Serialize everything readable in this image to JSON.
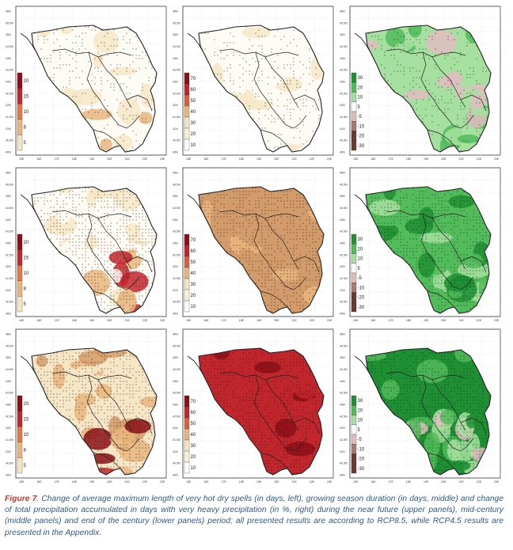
{
  "caption": {
    "figure_label": "Figure 7",
    "text": ". Change of average maximum length of very hot dry spells (in days, left), growing season duration (in days, middle) and change of total precipitation accumulated in days with very heavy precipitation (in %, right) during the near future (upper panels), mid-century (middle panels) and end of the century (lower panels) period; all presented results are according to RCP8.5, while RCP4.5 results are presented in the Appendix."
  },
  "colors": {
    "white": "#fdfbf4",
    "light_tan": "#f6e6c6",
    "tan": "#e9b57c",
    "brown_tan": "#d39b6a",
    "dark_red": "#c0262b",
    "very_dark_red": "#8c1018",
    "light_green": "#a6e0a0",
    "green": "#52bb5a",
    "dark_green": "#1f8f34",
    "pink": "#e0bcbf",
    "brown": "#6a3c2c",
    "sea_border": "#222222"
  },
  "chart_data": [
    {
      "type": "map",
      "row": "near future",
      "column": "hot dry spells (days)",
      "colorbar_ticks": [
        "20",
        "15",
        "10",
        "8",
        "5"
      ],
      "fill": "low",
      "xticks": [
        "15E",
        "16E",
        "17E",
        "18E",
        "19E",
        "20E",
        "21E",
        "22E",
        "23E"
      ],
      "yticks": [
        "46N",
        "45.5N",
        "45N",
        "44.5N",
        "44N",
        "43.5N",
        "43N",
        "42.5N",
        "42N",
        "41.5N",
        "41N",
        "40.5N",
        "40N"
      ]
    },
    {
      "type": "map",
      "row": "near future",
      "column": "growing season duration (days)",
      "colorbar_ticks": [
        "70",
        "60",
        "50",
        "40",
        "30",
        "20",
        "10"
      ],
      "fill": "low",
      "xticks": [
        "15E",
        "16E",
        "17E",
        "18E",
        "19E",
        "20E",
        "21E",
        "22E",
        "23E"
      ],
      "yticks": [
        "46N",
        "45.5N",
        "45N",
        "44.5N",
        "44N",
        "43.5N",
        "43N",
        "42.5N",
        "42N",
        "41.5N",
        "41N",
        "40.5N",
        "40N"
      ]
    },
    {
      "type": "map",
      "row": "near future",
      "column": "very heavy precipitation (%)",
      "colorbar_ticks": [
        "30",
        "20",
        "10",
        "5",
        "-5",
        "-10",
        "-20",
        "-30"
      ],
      "fill": "green_mix",
      "xticks": [
        "15E",
        "16E",
        "17E",
        "18E",
        "19E",
        "20E",
        "21E",
        "22E",
        "23E"
      ],
      "yticks": [
        "46N",
        "45.5N",
        "45N",
        "44.5N",
        "44N",
        "43.5N",
        "43N",
        "42.5N",
        "42N",
        "41.5N",
        "41N",
        "40.5N",
        "40N"
      ]
    },
    {
      "type": "map",
      "row": "mid-century",
      "column": "hot dry spells (days)",
      "colorbar_ticks": [
        "20",
        "15",
        "10",
        "8",
        "5"
      ],
      "fill": "mid_red_south",
      "xticks": [
        "15E",
        "16E",
        "17E",
        "18E",
        "19E",
        "20E",
        "21E",
        "22E",
        "23E"
      ],
      "yticks": [
        "46N",
        "45.5N",
        "45N",
        "44.5N",
        "44N",
        "43.5N",
        "43N",
        "42.5N",
        "42N",
        "41.5N",
        "41N",
        "40.5N",
        "40N"
      ]
    },
    {
      "type": "map",
      "row": "mid-century",
      "column": "growing season duration (days)",
      "colorbar_ticks": [
        "70",
        "60",
        "50",
        "40",
        "30",
        "20",
        "10"
      ],
      "fill": "tan",
      "xticks": [
        "15E",
        "16E",
        "17E",
        "18E",
        "19E",
        "20E",
        "21E",
        "22E",
        "23E"
      ],
      "yticks": [
        "46N",
        "45.5N",
        "45N",
        "44.5N",
        "44N",
        "43.5N",
        "43N",
        "42.5N",
        "42N",
        "41.5N",
        "41N",
        "40.5N",
        "40N"
      ]
    },
    {
      "type": "map",
      "row": "mid-century",
      "column": "very heavy precipitation (%)",
      "colorbar_ticks": [
        "30",
        "20",
        "10",
        "5",
        "-5",
        "-10",
        "-20",
        "-30"
      ],
      "fill": "green",
      "xticks": [
        "15E",
        "16E",
        "17E",
        "18E",
        "19E",
        "20E",
        "21E",
        "22E",
        "23E"
      ],
      "yticks": [
        "46N",
        "45.5N",
        "45N",
        "44.5N",
        "44N",
        "43.5N",
        "43N",
        "42.5N",
        "42N",
        "41.5N",
        "41N",
        "40.5N",
        "40N"
      ]
    },
    {
      "type": "map",
      "row": "end of the century",
      "column": "hot dry spells (days)",
      "colorbar_ticks": [
        "20",
        "15",
        "10",
        "8",
        "5"
      ],
      "fill": "high_red",
      "xticks": [
        "15E",
        "16E",
        "17E",
        "18E",
        "19E",
        "20E",
        "21E",
        "22E",
        "23E"
      ],
      "yticks": [
        "46N",
        "45.5N",
        "45N",
        "44.5N",
        "44N",
        "43.5N",
        "43N",
        "42.5N",
        "42N",
        "41.5N",
        "41N",
        "40.5N",
        "40N"
      ]
    },
    {
      "type": "map",
      "row": "end of the century",
      "column": "growing season duration (days)",
      "colorbar_ticks": [
        "70",
        "60",
        "50",
        "40",
        "30",
        "20",
        "10"
      ],
      "fill": "dark_red",
      "xticks": [
        "15E",
        "16E",
        "17E",
        "18E",
        "19E",
        "20E",
        "21E",
        "22E",
        "23E"
      ],
      "yticks": [
        "46N",
        "45.5N",
        "45N",
        "44.5N",
        "44N",
        "43.5N",
        "43N",
        "42.5N",
        "42N",
        "41.5N",
        "41N",
        "40.5N",
        "40N"
      ]
    },
    {
      "type": "map",
      "row": "end of the century",
      "column": "very heavy precipitation (%)",
      "colorbar_ticks": [
        "30",
        "20",
        "10",
        "5",
        "-5",
        "-10",
        "-20",
        "-30"
      ],
      "fill": "dark_green",
      "xticks": [
        "15E",
        "16E",
        "17E",
        "18E",
        "19E",
        "20E",
        "21E",
        "22E",
        "23E"
      ],
      "yticks": [
        "46N",
        "45.5N",
        "45N",
        "44.5N",
        "44N",
        "43.5N",
        "43N",
        "42.5N",
        "42N",
        "41.5N",
        "41N",
        "40.5N",
        "40N"
      ]
    }
  ]
}
